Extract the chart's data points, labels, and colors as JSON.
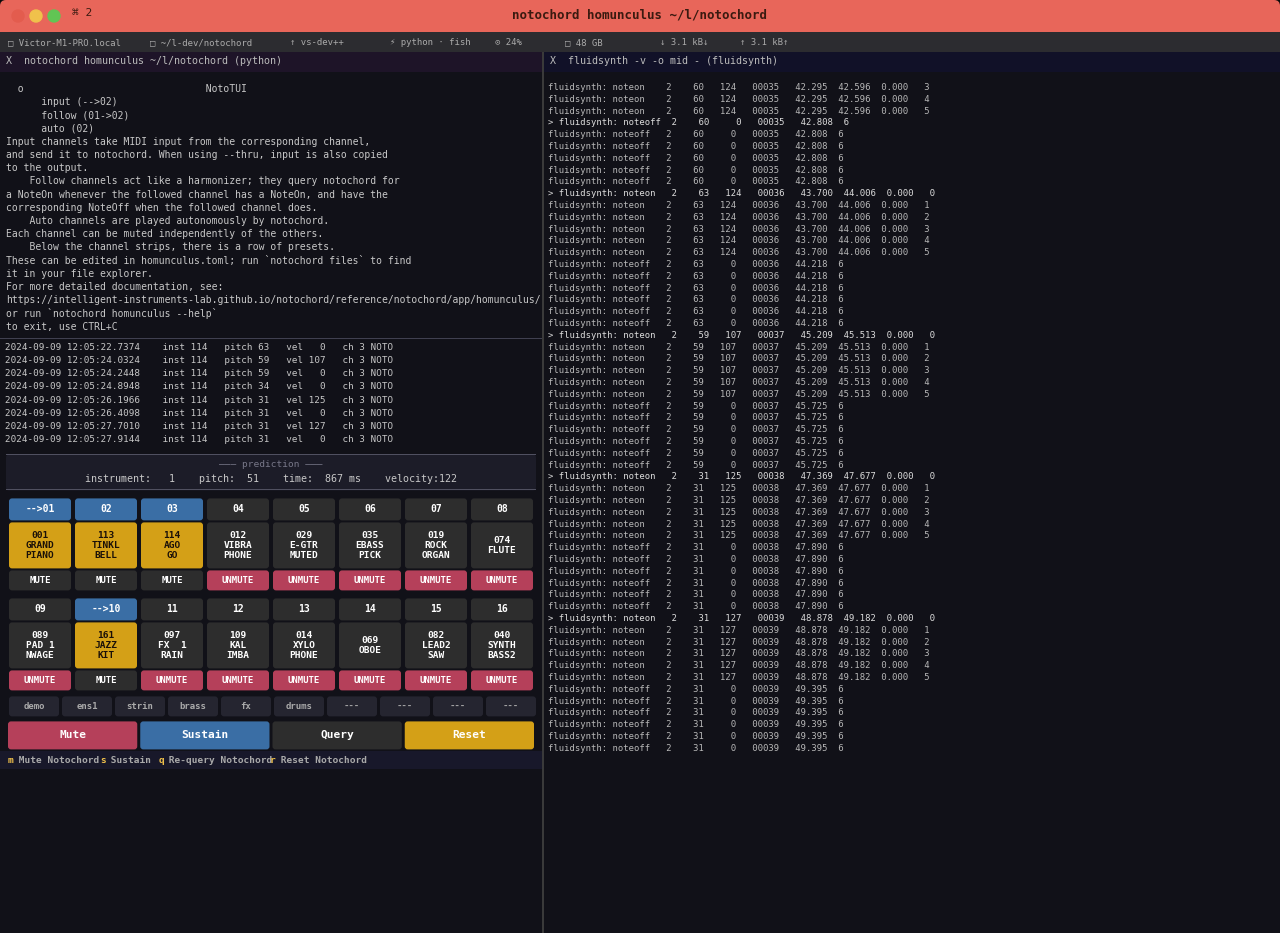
{
  "title": "notochord homunculus ~/l/notochord",
  "bg_color": "#1a1a1a",
  "titlebar_color": "#e8665a",
  "left_panel_bg": "#111118",
  "right_panel_bg": "#111118",
  "terminal_text_color": "#c8c8c8",
  "nototui_help_text": [
    "  o                               NotoTUI",
    "      input (-->02)",
    "      follow (01->02)",
    "      auto (02)",
    "Input channels take MIDI input from the corresponding channel,",
    "and send it to notochord. When using --thru, input is also copied",
    "to the output.",
    "    Follow channels act like a harmonizer; they query notochord for",
    "a NoteOn whenever the followed channel has a NoteOn, and have the",
    "corresponding NoteOff when the followed channel does.",
    "    Auto channels are played autonomously by notochord.",
    "Each channel can be muted independently of the others.",
    "    Below the channel strips, there is a row of presets.",
    "These can be edited in homunculus.toml; run `notochord files` to find",
    "it in your file explorer.",
    "For more detailed documentation, see:",
    "https://intelligent-instruments-lab.github.io/notochord/reference/notochord/app/homunculus/",
    "or run `notochord homunculus --help`",
    "to exit, use CTRL+C"
  ],
  "log_lines": [
    "2024-09-09 12:05:22.7374    inst 114   pitch 63   vel   0   ch 3 NOTO",
    "2024-09-09 12:05:24.0324    inst 114   pitch 59   vel 107   ch 3 NOTO",
    "2024-09-09 12:05:24.2448    inst 114   pitch 59   vel   0   ch 3 NOTO",
    "2024-09-09 12:05:24.8948    inst 114   pitch 34   vel   0   ch 3 NOTO",
    "2024-09-09 12:05:26.1966    inst 114   pitch 31   vel 125   ch 3 NOTO",
    "2024-09-09 12:05:26.4098    inst 114   pitch 31   vel   0   ch 3 NOTO",
    "2024-09-09 12:05:27.7010    inst 114   pitch 31   vel 127   ch 3 NOTO",
    "2024-09-09 12:05:27.9144    inst 114   pitch 31   vel   0   ch 3 NOTO"
  ],
  "prediction_text": "instrument:   1    pitch:  51    time:  867 ms    velocity:122",
  "right_panel_lines": [
    "fluidsynth: noteon    2    60   124   00035   42.295  42.596  0.000   3",
    "fluidsynth: noteon    2    60   124   00035   42.295  42.596  0.000   4",
    "fluidsynth: noteon    2    60   124   00035   42.295  42.596  0.000   5",
    "> fluidsynth: noteoff  2    60     0   00035   42.808  6",
    "fluidsynth: noteoff   2    60     0   00035   42.808  6",
    "fluidsynth: noteoff   2    60     0   00035   42.808  6",
    "fluidsynth: noteoff   2    60     0   00035   42.808  6",
    "fluidsynth: noteoff   2    60     0   00035   42.808  6",
    "fluidsynth: noteoff   2    60     0   00035   42.808  6",
    "> fluidsynth: noteon   2    63   124   00036   43.700  44.006  0.000   0",
    "fluidsynth: noteon    2    63   124   00036   43.700  44.006  0.000   1",
    "fluidsynth: noteon    2    63   124   00036   43.700  44.006  0.000   2",
    "fluidsynth: noteon    2    63   124   00036   43.700  44.006  0.000   3",
    "fluidsynth: noteon    2    63   124   00036   43.700  44.006  0.000   4",
    "fluidsynth: noteon    2    63   124   00036   43.700  44.006  0.000   5",
    "fluidsynth: noteoff   2    63     0   00036   44.218  6",
    "fluidsynth: noteoff   2    63     0   00036   44.218  6",
    "fluidsynth: noteoff   2    63     0   00036   44.218  6",
    "fluidsynth: noteoff   2    63     0   00036   44.218  6",
    "fluidsynth: noteoff   2    63     0   00036   44.218  6",
    "fluidsynth: noteoff   2    63     0   00036   44.218  6",
    "> fluidsynth: noteon   2    59   107   00037   45.209  45.513  0.000   0",
    "fluidsynth: noteon    2    59   107   00037   45.209  45.513  0.000   1",
    "fluidsynth: noteon    2    59   107   00037   45.209  45.513  0.000   2",
    "fluidsynth: noteon    2    59   107   00037   45.209  45.513  0.000   3",
    "fluidsynth: noteon    2    59   107   00037   45.209  45.513  0.000   4",
    "fluidsynth: noteon    2    59   107   00037   45.209  45.513  0.000   5",
    "fluidsynth: noteoff   2    59     0   00037   45.725  6",
    "fluidsynth: noteoff   2    59     0   00037   45.725  6",
    "fluidsynth: noteoff   2    59     0   00037   45.725  6",
    "fluidsynth: noteoff   2    59     0   00037   45.725  6",
    "fluidsynth: noteoff   2    59     0   00037   45.725  6",
    "fluidsynth: noteoff   2    59     0   00037   45.725  6",
    "> fluidsynth: noteon   2    31   125   00038   47.369  47.677  0.000   0",
    "fluidsynth: noteon    2    31   125   00038   47.369  47.677  0.000   1",
    "fluidsynth: noteon    2    31   125   00038   47.369  47.677  0.000   2",
    "fluidsynth: noteon    2    31   125   00038   47.369  47.677  0.000   3",
    "fluidsynth: noteon    2    31   125   00038   47.369  47.677  0.000   4",
    "fluidsynth: noteon    2    31   125   00038   47.369  47.677  0.000   5",
    "fluidsynth: noteoff   2    31     0   00038   47.890  6",
    "fluidsynth: noteoff   2    31     0   00038   47.890  6",
    "fluidsynth: noteoff   2    31     0   00038   47.890  6",
    "fluidsynth: noteoff   2    31     0   00038   47.890  6",
    "fluidsynth: noteoff   2    31     0   00038   47.890  6",
    "fluidsynth: noteoff   2    31     0   00038   47.890  6",
    "> fluidsynth: noteon   2    31   127   00039   48.878  49.182  0.000   0",
    "fluidsynth: noteon    2    31   127   00039   48.878  49.182  0.000   1",
    "fluidsynth: noteon    2    31   127   00039   48.878  49.182  0.000   2",
    "fluidsynth: noteon    2    31   127   00039   48.878  49.182  0.000   3",
    "fluidsynth: noteon    2    31   127   00039   48.878  49.182  0.000   4",
    "fluidsynth: noteon    2    31   127   00039   48.878  49.182  0.000   5",
    "fluidsynth: noteoff   2    31     0   00039   49.395  6",
    "fluidsynth: noteoff   2    31     0   00039   49.395  6",
    "fluidsynth: noteoff   2    31     0   00039   49.395  6",
    "fluidsynth: noteoff   2    31     0   00039   49.395  6",
    "fluidsynth: noteoff   2    31     0   00039   49.395  6",
    "fluidsynth: noteoff   2    31     0   00039   49.395  6"
  ],
  "right_header": "X  fluidsynth -v -o mid - (fluidsynth)",
  "channels_row1": [
    "-->01",
    "02",
    "03",
    "04",
    "05",
    "06",
    "07",
    "08"
  ],
  "channels_row1_colors": [
    "#3a6ea5",
    "#3a6ea5",
    "#3a6ea5",
    "#2d2d2d",
    "#2d2d2d",
    "#2d2d2d",
    "#2d2d2d",
    "#2d2d2d"
  ],
  "instruments_row1": [
    [
      "001",
      "GRAND",
      "PIANO"
    ],
    [
      "113",
      "TINKL",
      "BELL"
    ],
    [
      "114",
      "AGO",
      "GO"
    ],
    [
      "012",
      "VIBRA",
      "PHONE"
    ],
    [
      "029",
      "E-GTR",
      "MUTED"
    ],
    [
      "035",
      "EBASS",
      "PICK"
    ],
    [
      "019",
      "ROCK",
      "ORGAN"
    ],
    [
      "074",
      "FLUTE",
      ""
    ]
  ],
  "instruments_row1_colors": [
    "#d4a017",
    "#d4a017",
    "#d4a017",
    "#2d2d2d",
    "#2d2d2d",
    "#2d2d2d",
    "#2d2d2d",
    "#2d2d2d"
  ],
  "mute_row1": [
    "MUTE",
    "MUTE",
    "MUTE",
    "UNMUTE",
    "UNMUTE",
    "UNMUTE",
    "UNMUTE",
    "UNMUTE"
  ],
  "mute_row1_colors": [
    "#2d2d2d",
    "#2d2d2d",
    "#2d2d2d",
    "#b5405a",
    "#b5405a",
    "#b5405a",
    "#b5405a",
    "#b5405a"
  ],
  "channels_row2": [
    "09",
    "-->10",
    "11",
    "12",
    "13",
    "14",
    "15",
    "16"
  ],
  "channels_row2_colors": [
    "#2d2d2d",
    "#3a6ea5",
    "#2d2d2d",
    "#2d2d2d",
    "#2d2d2d",
    "#2d2d2d",
    "#2d2d2d",
    "#2d2d2d"
  ],
  "instruments_row2": [
    [
      "089",
      "PAD 1",
      "NWAGE"
    ],
    [
      "161",
      "JAZZ",
      "KIT"
    ],
    [
      "097",
      "FX  1",
      "RAIN"
    ],
    [
      "109",
      "KAL",
      "IMBA"
    ],
    [
      "014",
      "XYLO",
      "PHONE"
    ],
    [
      "069",
      "OBOE",
      ""
    ],
    [
      "082",
      "LEAD2",
      "SAW"
    ],
    [
      "040",
      "SYNTH",
      "BASS2"
    ]
  ],
  "instruments_row2_colors": [
    "#2d2d2d",
    "#d4a017",
    "#2d2d2d",
    "#2d2d2d",
    "#2d2d2d",
    "#2d2d2d",
    "#2d2d2d",
    "#2d2d2d"
  ],
  "mute_row2": [
    "UNMUTE",
    "MUTE",
    "UNMUTE",
    "UNMUTE",
    "UNMUTE",
    "UNMUTE",
    "UNMUTE",
    "UNMUTE"
  ],
  "mute_row2_colors": [
    "#b5405a",
    "#2d2d2d",
    "#b5405a",
    "#b5405a",
    "#b5405a",
    "#b5405a",
    "#b5405a",
    "#b5405a"
  ],
  "presets": [
    "demo",
    "ens1",
    "strin",
    "brass",
    "fx",
    "drums",
    "---",
    "---",
    "---",
    "---"
  ],
  "bottom_buttons": [
    "Mute",
    "Sustain",
    "Query",
    "Reset"
  ],
  "bottom_button_colors": [
    "#b5405a",
    "#3a6ea5",
    "#2d2d2d",
    "#d4a017"
  ],
  "shortcut_segments": [
    [
      "m",
      "#f0c14b"
    ],
    [
      " Mute Notochord   ",
      "#aaaaaa"
    ],
    [
      "s",
      "#f0c14b"
    ],
    [
      " Sustain   ",
      "#aaaaaa"
    ],
    [
      "q",
      "#f0c14b"
    ],
    [
      " Re-query Notochord   ",
      "#aaaaaa"
    ],
    [
      "r",
      "#f0c14b"
    ],
    [
      " Reset Notochord",
      "#aaaaaa"
    ]
  ],
  "tab_items": [
    [
      8,
      "□ Victor-M1-PRO.local"
    ],
    [
      150,
      "□ ~/l-dev/notochord"
    ],
    [
      290,
      "↑ vs-dev++"
    ],
    [
      390,
      "⚡ python · fish"
    ],
    [
      495,
      "⊙ 24%"
    ],
    [
      565,
      "□ 48 GB"
    ],
    [
      660,
      "↓ 3.1 kB↓"
    ],
    [
      740,
      "↑ 3.1 kB↑"
    ]
  ]
}
